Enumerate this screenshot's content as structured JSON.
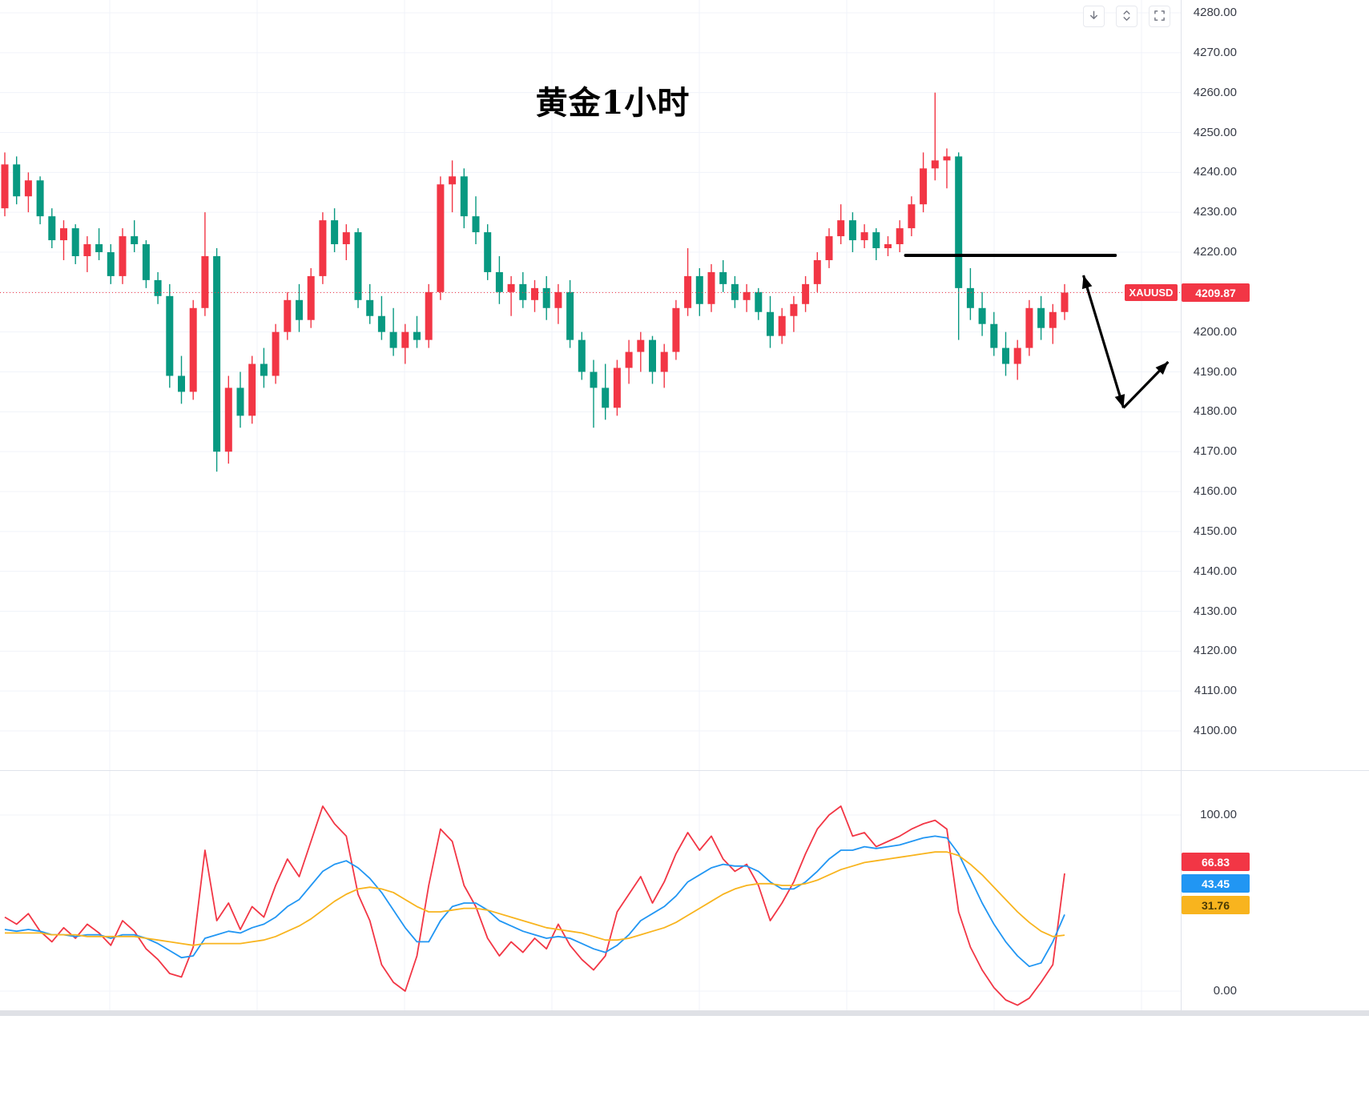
{
  "title": "黄金1小时",
  "price_label": {
    "symbol": "XAUUSD",
    "price": "4209.87"
  },
  "toolbar": {
    "buttons": [
      {
        "name": "download"
      },
      {
        "name": "expand"
      },
      {
        "name": "fullscreen"
      }
    ]
  },
  "colors": {
    "up": "#f23645",
    "down": "#089981",
    "grid": "#f0f3fa",
    "separator": "#e0e3eb",
    "axis_text": "#363a45",
    "price_line": "#f23645",
    "annotation": "#000000",
    "bottom_bar": "#dfe1e6",
    "label_bg": "#f23645"
  },
  "chart_data": [
    {
      "type": "candlestick",
      "title": "黄金1小时",
      "symbol": "XAUUSD",
      "timeframe": "1h",
      "last_price": 4209.87,
      "ylim": [
        4093,
        4283
      ],
      "y_ticks": [
        "4280.00",
        "4270.00",
        "4260.00",
        "4250.00",
        "4240.00",
        "4230.00",
        "4220.00",
        "4210.00",
        "4200.00",
        "4190.00",
        "4180.00",
        "4170.00",
        "4160.00",
        "4150.00",
        "4140.00",
        "4130.00",
        "4120.00",
        "4110.00",
        "4100.00"
      ],
      "up_color_meaning": "red = bullish, green = bearish (CN convention)",
      "candles": [
        [
          4231,
          4245,
          4229,
          4242
        ],
        [
          4242,
          4244,
          4232,
          4234
        ],
        [
          4234,
          4240,
          4230,
          4238
        ],
        [
          4238,
          4239,
          4227,
          4229
        ],
        [
          4229,
          4231,
          4221,
          4223
        ],
        [
          4223,
          4228,
          4218,
          4226
        ],
        [
          4226,
          4227,
          4217,
          4219
        ],
        [
          4219,
          4224,
          4215,
          4222
        ],
        [
          4222,
          4226,
          4218,
          4220
        ],
        [
          4220,
          4222,
          4212,
          4214
        ],
        [
          4214,
          4226,
          4212,
          4224
        ],
        [
          4224,
          4228,
          4220,
          4222
        ],
        [
          4222,
          4223,
          4211,
          4213
        ],
        [
          4213,
          4215,
          4207,
          4209
        ],
        [
          4209,
          4212,
          4186,
          4189
        ],
        [
          4189,
          4194,
          4182,
          4185
        ],
        [
          4185,
          4208,
          4183,
          4206
        ],
        [
          4206,
          4230,
          4204,
          4219
        ],
        [
          4219,
          4221,
          4165,
          4170
        ],
        [
          4170,
          4189,
          4167,
          4186
        ],
        [
          4186,
          4190,
          4176,
          4179
        ],
        [
          4179,
          4194,
          4177,
          4192
        ],
        [
          4192,
          4196,
          4186,
          4189
        ],
        [
          4189,
          4202,
          4187,
          4200
        ],
        [
          4200,
          4210,
          4198,
          4208
        ],
        [
          4208,
          4212,
          4200,
          4203
        ],
        [
          4203,
          4216,
          4201,
          4214
        ],
        [
          4214,
          4230,
          4212,
          4228
        ],
        [
          4228,
          4231,
          4220,
          4222
        ],
        [
          4222,
          4227,
          4218,
          4225
        ],
        [
          4225,
          4226,
          4206,
          4208
        ],
        [
          4208,
          4212,
          4202,
          4204
        ],
        [
          4204,
          4209,
          4198,
          4200
        ],
        [
          4200,
          4206,
          4194,
          4196
        ],
        [
          4196,
          4202,
          4192,
          4200
        ],
        [
          4200,
          4204,
          4196,
          4198
        ],
        [
          4198,
          4212,
          4196,
          4210
        ],
        [
          4210,
          4239,
          4208,
          4237
        ],
        [
          4237,
          4243,
          4230,
          4239
        ],
        [
          4239,
          4241,
          4226,
          4229
        ],
        [
          4229,
          4234,
          4222,
          4225
        ],
        [
          4225,
          4227,
          4213,
          4215
        ],
        [
          4215,
          4219,
          4207,
          4210
        ],
        [
          4210,
          4214,
          4204,
          4212
        ],
        [
          4212,
          4215,
          4206,
          4208
        ],
        [
          4208,
          4213,
          4205,
          4211
        ],
        [
          4211,
          4214,
          4203,
          4206
        ],
        [
          4206,
          4212,
          4202,
          4210
        ],
        [
          4210,
          4213,
          4196,
          4198
        ],
        [
          4198,
          4200,
          4188,
          4190
        ],
        [
          4190,
          4193,
          4176,
          4186
        ],
        [
          4186,
          4192,
          4178,
          4181
        ],
        [
          4181,
          4193,
          4179,
          4191
        ],
        [
          4191,
          4198,
          4187,
          4195
        ],
        [
          4195,
          4200,
          4190,
          4198
        ],
        [
          4198,
          4199,
          4187,
          4190
        ],
        [
          4190,
          4197,
          4186,
          4195
        ],
        [
          4195,
          4208,
          4193,
          4206
        ],
        [
          4206,
          4221,
          4204,
          4214
        ],
        [
          4214,
          4216,
          4204,
          4207
        ],
        [
          4207,
          4217,
          4205,
          4215
        ],
        [
          4215,
          4218,
          4210,
          4212
        ],
        [
          4212,
          4214,
          4206,
          4208
        ],
        [
          4208,
          4212,
          4205,
          4210
        ],
        [
          4210,
          4211,
          4203,
          4205
        ],
        [
          4205,
          4209,
          4196,
          4199
        ],
        [
          4199,
          4206,
          4197,
          4204
        ],
        [
          4204,
          4209,
          4200,
          4207
        ],
        [
          4207,
          4214,
          4205,
          4212
        ],
        [
          4212,
          4220,
          4210,
          4218
        ],
        [
          4218,
          4226,
          4216,
          4224
        ],
        [
          4224,
          4232,
          4222,
          4228
        ],
        [
          4228,
          4230,
          4220,
          4223
        ],
        [
          4223,
          4227,
          4221,
          4225
        ],
        [
          4225,
          4226,
          4218,
          4221
        ],
        [
          4221,
          4224,
          4219,
          4222
        ],
        [
          4222,
          4228,
          4220,
          4226
        ],
        [
          4226,
          4234,
          4224,
          4232
        ],
        [
          4232,
          4245,
          4230,
          4241
        ],
        [
          4241,
          4260,
          4238,
          4243
        ],
        [
          4243,
          4246,
          4236,
          4244
        ],
        [
          4244,
          4245,
          4198,
          4211
        ],
        [
          4211,
          4216,
          4203,
          4206
        ],
        [
          4206,
          4210,
          4199,
          4202
        ],
        [
          4202,
          4205,
          4194,
          4196
        ],
        [
          4196,
          4200,
          4189,
          4192
        ],
        [
          4192,
          4198,
          4188,
          4196
        ],
        [
          4196,
          4208,
          4194,
          4206
        ],
        [
          4206,
          4209,
          4198,
          4201
        ],
        [
          4201,
          4207,
          4197,
          4205
        ],
        [
          4205,
          4212,
          4203,
          4209.87
        ]
      ],
      "annotations": {
        "resistance_line": {
          "price": 4219.2,
          "from_index": 76.5,
          "to_index": 94.3
        },
        "projection_arrows": [
          {
            "from": {
              "index": 91.6,
              "price": 4214.2
            },
            "to": {
              "index": 95.0,
              "price": 4181.0
            },
            "heads": "both"
          },
          {
            "from": {
              "index": 95.0,
              "price": 4181.0
            },
            "to": {
              "index": 98.8,
              "price": 4192.5
            },
            "heads": "end"
          }
        ]
      }
    },
    {
      "type": "line",
      "name": "oscillator",
      "ylim": [
        -15,
        112
      ],
      "y_ticks": [
        "100.00",
        "0.00"
      ],
      "series": [
        {
          "name": "fast",
          "color": "#f23645",
          "values": [
            42,
            38,
            44,
            34,
            28,
            36,
            30,
            38,
            33,
            26,
            40,
            34,
            24,
            18,
            10,
            8,
            25,
            80,
            40,
            50,
            35,
            48,
            42,
            60,
            75,
            65,
            85,
            105,
            95,
            88,
            55,
            40,
            15,
            5,
            0,
            20,
            60,
            92,
            85,
            60,
            48,
            30,
            20,
            28,
            22,
            30,
            24,
            38,
            26,
            18,
            12,
            20,
            45,
            55,
            65,
            50,
            62,
            78,
            90,
            80,
            88,
            75,
            68,
            72,
            60,
            40,
            50,
            62,
            78,
            92,
            100,
            105,
            88,
            90,
            82,
            85,
            88,
            92,
            95,
            97,
            92,
            45,
            25,
            12,
            2,
            -5,
            -8,
            -4,
            5,
            15,
            66.83
          ]
        },
        {
          "name": "mid",
          "color": "#2196f3",
          "values": [
            35,
            34,
            35,
            34,
            32,
            32,
            31,
            32,
            32,
            30,
            32,
            32,
            30,
            27,
            23,
            19,
            20,
            30,
            32,
            34,
            33,
            36,
            38,
            42,
            48,
            52,
            60,
            68,
            72,
            74,
            70,
            64,
            56,
            46,
            36,
            28,
            28,
            40,
            48,
            50,
            50,
            46,
            40,
            37,
            34,
            32,
            30,
            31,
            30,
            27,
            24,
            22,
            26,
            32,
            40,
            44,
            48,
            54,
            62,
            66,
            70,
            72,
            71,
            71,
            68,
            62,
            58,
            58,
            62,
            68,
            75,
            80,
            80,
            82,
            81,
            82,
            83,
            85,
            87,
            88,
            87,
            78,
            64,
            50,
            38,
            28,
            20,
            14,
            16,
            28,
            43.45
          ]
        },
        {
          "name": "slow",
          "color": "#f8b41e",
          "values": [
            33,
            33,
            33,
            33,
            32,
            32,
            32,
            31,
            31,
            31,
            31,
            31,
            30,
            29,
            28,
            27,
            26,
            27,
            27,
            27,
            27,
            28,
            29,
            31,
            34,
            37,
            41,
            46,
            51,
            55,
            58,
            59,
            58,
            56,
            52,
            48,
            45,
            45,
            46,
            47,
            47,
            46,
            44,
            42,
            40,
            38,
            36,
            35,
            34,
            33,
            31,
            29,
            29,
            30,
            32,
            34,
            36,
            39,
            43,
            47,
            51,
            55,
            58,
            60,
            61,
            61,
            60,
            60,
            61,
            63,
            66,
            69,
            71,
            73,
            74,
            75,
            76,
            77,
            78,
            79,
            79,
            77,
            72,
            66,
            59,
            52,
            45,
            39,
            34,
            31,
            31.76
          ]
        }
      ],
      "labels": [
        {
          "text": "66.83",
          "color": "#f23645",
          "text_color": "#ffffff"
        },
        {
          "text": "43.45",
          "color": "#2196f3",
          "text_color": "#ffffff"
        },
        {
          "text": "31.76",
          "color": "#f8b41e",
          "text_color": "#4a3a05"
        }
      ]
    }
  ]
}
